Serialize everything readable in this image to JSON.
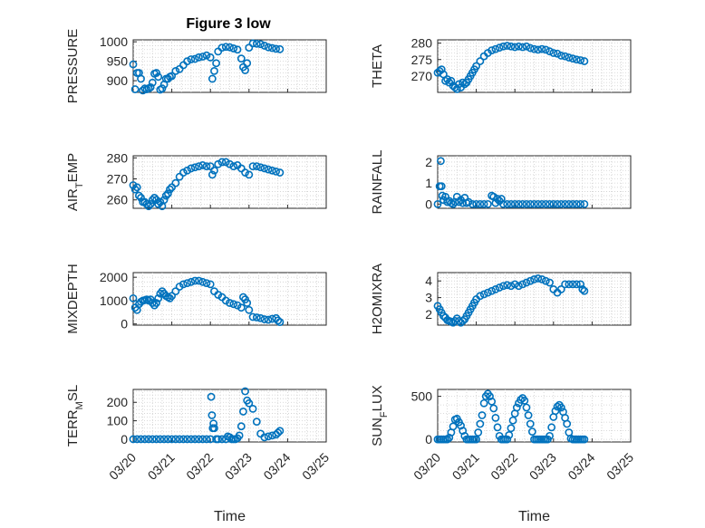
{
  "figure": {
    "title": "Figure 3 low",
    "marker_color": "#0072BD"
  },
  "chart_data": [
    {
      "type": "scatter",
      "title": "Figure 3 low",
      "ylabel": "PRESSURE",
      "ylim": [
        870,
        1005
      ],
      "yticks": [
        "900",
        "950",
        "1000"
      ],
      "ytick_values": [
        900,
        950,
        1000
      ],
      "xlim": [
        0,
        5
      ],
      "grid": true,
      "x": [
        0.0,
        0.05,
        0.1,
        0.15,
        0.2,
        0.25,
        0.3,
        0.35,
        0.4,
        0.45,
        0.5,
        0.55,
        0.6,
        0.65,
        0.7,
        0.75,
        0.8,
        0.85,
        0.9,
        0.95,
        1.0,
        1.1,
        1.2,
        1.3,
        1.4,
        1.5,
        1.6,
        1.7,
        1.8,
        1.9,
        2.0,
        2.05,
        2.1,
        2.15,
        2.2,
        2.3,
        2.4,
        2.5,
        2.6,
        2.7,
        2.8,
        2.85,
        2.9,
        2.95,
        3.0,
        3.1,
        3.2,
        3.3,
        3.4,
        3.5,
        3.6,
        3.7,
        3.8
      ],
      "y": [
        942,
        878,
        920,
        920,
        905,
        875,
        880,
        878,
        880,
        883,
        895,
        918,
        920,
        910,
        877,
        880,
        890,
        905,
        905,
        910,
        912,
        925,
        930,
        940,
        950,
        955,
        956,
        960,
        962,
        965,
        960,
        905,
        925,
        945,
        975,
        985,
        987,
        986,
        983,
        980,
        957,
        935,
        927,
        945,
        985,
        996,
        995,
        994,
        990,
        986,
        984,
        982,
        981
      ]
    },
    {
      "type": "scatter",
      "ylabel": "THETA",
      "ylim": [
        265,
        281
      ],
      "yticks": [
        "270",
        "275",
        "280"
      ],
      "ytick_values": [
        270,
        275,
        280
      ],
      "xlim": [
        0,
        5
      ],
      "grid": true,
      "x": [
        0.0,
        0.05,
        0.1,
        0.15,
        0.2,
        0.25,
        0.3,
        0.35,
        0.4,
        0.45,
        0.5,
        0.55,
        0.6,
        0.65,
        0.7,
        0.75,
        0.8,
        0.85,
        0.9,
        0.95,
        1.0,
        1.1,
        1.2,
        1.3,
        1.4,
        1.5,
        1.6,
        1.7,
        1.8,
        1.9,
        2.0,
        2.1,
        2.2,
        2.3,
        2.4,
        2.5,
        2.6,
        2.7,
        2.8,
        2.9,
        3.0,
        3.1,
        3.2,
        3.3,
        3.4,
        3.5,
        3.6,
        3.7,
        3.8
      ],
      "y": [
        271,
        271.5,
        272,
        270.5,
        268.5,
        269,
        268,
        268.5,
        267,
        266.5,
        266,
        267.5,
        266.5,
        268,
        267.5,
        268,
        269,
        270,
        271,
        272,
        273,
        274.5,
        276,
        277,
        277.8,
        278.2,
        278.6,
        279,
        279.2,
        279,
        278.8,
        279,
        278.8,
        279,
        278.5,
        278.2,
        278,
        278.2,
        278,
        277.5,
        277,
        276.8,
        276.2,
        276,
        275.6,
        275.3,
        275,
        274.8,
        274.5
      ]
    },
    {
      "type": "scatter",
      "ylabel": "AIR_TEMP",
      "ylim": [
        256,
        281
      ],
      "yticks": [
        "260",
        "270",
        "280"
      ],
      "ytick_values": [
        260,
        270,
        280
      ],
      "xlim": [
        0,
        5
      ],
      "grid": true,
      "x": [
        0.0,
        0.05,
        0.1,
        0.15,
        0.2,
        0.25,
        0.3,
        0.35,
        0.4,
        0.45,
        0.5,
        0.55,
        0.6,
        0.65,
        0.7,
        0.75,
        0.8,
        0.85,
        0.9,
        0.95,
        1.0,
        1.1,
        1.2,
        1.3,
        1.4,
        1.5,
        1.6,
        1.7,
        1.8,
        1.9,
        2.0,
        2.05,
        2.1,
        2.2,
        2.3,
        2.4,
        2.5,
        2.6,
        2.7,
        2.8,
        2.9,
        3.0,
        3.1,
        3.2,
        3.3,
        3.4,
        3.5,
        3.6,
        3.7,
        3.8
      ],
      "y": [
        267,
        265,
        266,
        262,
        261,
        259,
        259,
        258,
        257,
        258,
        260,
        261,
        260,
        258,
        259,
        257,
        260,
        262,
        263,
        265,
        266,
        268,
        271,
        273,
        274,
        275,
        275.5,
        276,
        276.5,
        276,
        276,
        272,
        274,
        277,
        278,
        278,
        277,
        276,
        276.5,
        275,
        273,
        272,
        276,
        276,
        275.5,
        275,
        274.5,
        274,
        273.5,
        273
      ]
    },
    {
      "type": "scatter",
      "ylabel": "RAINFALL",
      "ylim": [
        -0.2,
        2.3
      ],
      "yticks": [
        "0",
        "1",
        "2"
      ],
      "ytick_values": [
        0,
        1,
        2
      ],
      "xlim": [
        0,
        5
      ],
      "grid": true,
      "x": [
        0.0,
        0.05,
        0.08,
        0.1,
        0.12,
        0.15,
        0.2,
        0.25,
        0.3,
        0.35,
        0.4,
        0.45,
        0.5,
        0.55,
        0.6,
        0.65,
        0.7,
        0.75,
        0.8,
        0.9,
        1.0,
        1.1,
        1.2,
        1.3,
        1.4,
        1.45,
        1.5,
        1.55,
        1.6,
        1.65,
        1.7,
        1.8,
        1.9,
        2.0,
        2.1,
        2.2,
        2.3,
        2.4,
        2.5,
        2.6,
        2.7,
        2.8,
        2.9,
        3.0,
        3.1,
        3.2,
        3.3,
        3.4,
        3.5,
        3.6,
        3.7,
        3.8
      ],
      "y": [
        0,
        0.85,
        2.05,
        0.85,
        0.4,
        0.2,
        0.35,
        0.1,
        0.15,
        0.05,
        0,
        0.1,
        0.35,
        0.1,
        0.2,
        0.05,
        0.3,
        0.05,
        0.1,
        0,
        0,
        0,
        0,
        0,
        0.4,
        0.35,
        0.05,
        0.25,
        0.15,
        0.25,
        0,
        0,
        0,
        0,
        0,
        0,
        0,
        0,
        0,
        0,
        0,
        0,
        0,
        0,
        0,
        0,
        0,
        0,
        0,
        0,
        0,
        0
      ]
    },
    {
      "type": "scatter",
      "ylabel": "MIXDEPTH",
      "ylim": [
        -50,
        2200
      ],
      "yticks": [
        "0",
        "1000",
        "2000"
      ],
      "ytick_values": [
        0,
        1000,
        2000
      ],
      "xlim": [
        0,
        5
      ],
      "grid": true,
      "x": [
        0.0,
        0.05,
        0.1,
        0.15,
        0.2,
        0.25,
        0.3,
        0.35,
        0.4,
        0.45,
        0.5,
        0.55,
        0.6,
        0.65,
        0.7,
        0.75,
        0.8,
        0.85,
        0.9,
        0.95,
        1.0,
        1.1,
        1.2,
        1.3,
        1.4,
        1.5,
        1.6,
        1.7,
        1.8,
        1.9,
        2.0,
        2.1,
        2.2,
        2.3,
        2.4,
        2.5,
        2.6,
        2.7,
        2.8,
        2.85,
        2.9,
        2.95,
        3.0,
        3.1,
        3.2,
        3.3,
        3.4,
        3.5,
        3.6,
        3.7,
        3.75,
        3.8
      ],
      "y": [
        1100,
        700,
        600,
        850,
        950,
        1000,
        1020,
        1050,
        1000,
        1050,
        900,
        800,
        900,
        1100,
        1300,
        1400,
        1300,
        1200,
        1150,
        1100,
        1200,
        1400,
        1600,
        1700,
        1750,
        1800,
        1850,
        1850,
        1800,
        1750,
        1700,
        1400,
        1250,
        1150,
        1000,
        900,
        850,
        800,
        700,
        1150,
        1050,
        900,
        600,
        300,
        280,
        250,
        200,
        180,
        220,
        250,
        150,
        80
      ]
    },
    {
      "type": "scatter",
      "ylabel": "H2OMIXRA",
      "ylim": [
        1.35,
        4.5
      ],
      "yticks": [
        "2",
        "3",
        "4"
      ],
      "ytick_values": [
        2,
        3,
        4
      ],
      "xlim": [
        0,
        5
      ],
      "grid": true,
      "x": [
        0.0,
        0.05,
        0.1,
        0.15,
        0.2,
        0.25,
        0.3,
        0.35,
        0.4,
        0.45,
        0.5,
        0.55,
        0.6,
        0.65,
        0.7,
        0.75,
        0.8,
        0.85,
        0.9,
        0.95,
        1.0,
        1.1,
        1.2,
        1.3,
        1.4,
        1.5,
        1.6,
        1.7,
        1.8,
        1.9,
        2.0,
        2.1,
        2.2,
        2.3,
        2.4,
        2.5,
        2.6,
        2.7,
        2.8,
        2.9,
        3.0,
        3.1,
        3.2,
        3.3,
        3.4,
        3.5,
        3.6,
        3.7,
        3.75,
        3.8
      ],
      "y": [
        2.5,
        2.3,
        2.1,
        1.9,
        1.8,
        1.65,
        1.6,
        1.55,
        1.5,
        1.6,
        1.75,
        1.6,
        1.5,
        1.6,
        1.7,
        1.9,
        2.1,
        2.3,
        2.5,
        2.7,
        2.9,
        3.1,
        3.2,
        3.3,
        3.4,
        3.5,
        3.6,
        3.7,
        3.75,
        3.7,
        3.8,
        3.7,
        3.8,
        3.9,
        4.0,
        4.1,
        4.15,
        4.1,
        4.0,
        3.9,
        3.5,
        3.3,
        3.5,
        3.8,
        3.8,
        3.8,
        3.8,
        3.8,
        3.5,
        3.4
      ]
    },
    {
      "type": "scatter",
      "ylabel": "TERR_MSL",
      "ylim": [
        -15,
        270
      ],
      "yticks": [
        "0",
        "100",
        "200"
      ],
      "ytick_values": [
        0,
        100,
        200
      ],
      "xlim": [
        0,
        5
      ],
      "xticks": [
        "03/20",
        "03/21",
        "03/22",
        "03/23",
        "03/24",
        "03/25"
      ],
      "xtick_values": [
        0,
        1,
        2,
        3,
        4,
        5
      ],
      "xlabel": "Time",
      "grid": true,
      "x": [
        0.0,
        0.1,
        0.2,
        0.3,
        0.4,
        0.5,
        0.6,
        0.7,
        0.8,
        0.9,
        1.0,
        1.1,
        1.2,
        1.3,
        1.4,
        1.5,
        1.6,
        1.7,
        1.8,
        1.9,
        2.0,
        2.02,
        2.04,
        2.06,
        2.08,
        2.1,
        2.15,
        2.2,
        2.3,
        2.4,
        2.45,
        2.5,
        2.55,
        2.6,
        2.65,
        2.7,
        2.75,
        2.8,
        2.85,
        2.9,
        2.95,
        3.0,
        3.1,
        3.2,
        3.3,
        3.4,
        3.5,
        3.6,
        3.7,
        3.75,
        3.8
      ],
      "y": [
        0,
        0,
        0,
        0,
        0,
        0,
        0,
        0,
        0,
        0,
        0,
        0,
        0,
        0,
        0,
        0,
        0,
        0,
        0,
        0,
        0,
        230,
        130,
        60,
        85,
        60,
        0,
        0,
        0,
        0,
        15,
        10,
        0,
        0,
        0,
        5,
        20,
        70,
        150,
        260,
        210,
        195,
        165,
        95,
        30,
        10,
        15,
        20,
        25,
        35,
        45
      ]
    },
    {
      "type": "scatter",
      "ylabel": "SUN_FLUX",
      "ylim": [
        -30,
        580
      ],
      "yticks": [
        "0",
        "500"
      ],
      "ytick_values": [
        0,
        500
      ],
      "xlim": [
        0,
        5
      ],
      "xticks": [
        "03/20",
        "03/21",
        "03/22",
        "03/23",
        "03/24",
        "03/25"
      ],
      "xtick_values": [
        0,
        1,
        2,
        3,
        4,
        5
      ],
      "xlabel": "Time",
      "grid": true,
      "x": [
        0.0,
        0.05,
        0.1,
        0.15,
        0.2,
        0.25,
        0.3,
        0.35,
        0.4,
        0.45,
        0.5,
        0.55,
        0.6,
        0.65,
        0.7,
        0.75,
        0.8,
        0.85,
        0.9,
        0.95,
        1.0,
        1.05,
        1.1,
        1.15,
        1.2,
        1.25,
        1.3,
        1.35,
        1.4,
        1.45,
        1.5,
        1.55,
        1.6,
        1.65,
        1.7,
        1.75,
        1.8,
        1.85,
        1.9,
        1.95,
        2.0,
        2.05,
        2.1,
        2.15,
        2.2,
        2.25,
        2.3,
        2.35,
        2.4,
        2.45,
        2.5,
        2.55,
        2.6,
        2.65,
        2.7,
        2.75,
        2.8,
        2.85,
        2.9,
        2.95,
        3.0,
        3.05,
        3.1,
        3.15,
        3.2,
        3.25,
        3.3,
        3.35,
        3.4,
        3.45,
        3.5,
        3.55,
        3.6,
        3.65,
        3.7,
        3.75,
        3.8
      ],
      "y": [
        0,
        0,
        0,
        0,
        0,
        0,
        20,
        80,
        150,
        230,
        240,
        200,
        160,
        100,
        40,
        0,
        0,
        0,
        0,
        0,
        0,
        80,
        180,
        280,
        420,
        500,
        530,
        500,
        440,
        360,
        250,
        140,
        40,
        0,
        0,
        0,
        0,
        50,
        130,
        220,
        300,
        370,
        420,
        460,
        480,
        450,
        370,
        280,
        180,
        90,
        0,
        0,
        0,
        0,
        0,
        0,
        0,
        0,
        40,
        140,
        260,
        330,
        380,
        400,
        370,
        320,
        250,
        180,
        80,
        10,
        0,
        0,
        0,
        0,
        0,
        0,
        0
      ]
    }
  ]
}
